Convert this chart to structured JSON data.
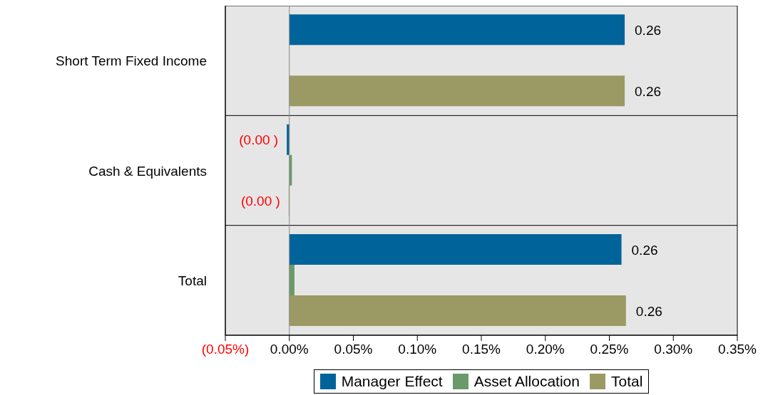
{
  "chart_data": {
    "type": "bar",
    "orientation": "horizontal",
    "categories": [
      "Short Term Fixed Income",
      "Cash & Equivalents",
      "Total"
    ],
    "series": [
      {
        "name": "Manager Effect",
        "color": "#00649b",
        "values": [
          0.262,
          -0.002,
          0.2595
        ],
        "value_labels": [
          "0.26",
          "(0.00 )",
          "0.26"
        ]
      },
      {
        "name": "Asset Allocation",
        "color": "#6a9a6a",
        "values": [
          null,
          0.002,
          0.004
        ],
        "value_labels": [
          null,
          null,
          null
        ]
      },
      {
        "name": "Total",
        "color": "#9c9a64",
        "values": [
          0.262,
          -0.0005,
          0.263
        ],
        "value_labels": [
          "0.26",
          "(0.00 )",
          "0.26"
        ]
      }
    ],
    "xlim": [
      -0.05,
      0.35
    ],
    "xticks": [
      {
        "value": -0.05,
        "label": "(0.05%)"
      },
      {
        "value": 0,
        "label": "0.00%"
      },
      {
        "value": 0.05,
        "label": "0.05%"
      },
      {
        "value": 0.1,
        "label": "0.10%"
      },
      {
        "value": 0.15,
        "label": "0.15%"
      },
      {
        "value": 0.2,
        "label": "0.20%"
      },
      {
        "value": 0.25,
        "label": "0.25%"
      },
      {
        "value": 0.3,
        "label": "0.30%"
      },
      {
        "value": 0.35,
        "label": "0.35%"
      }
    ],
    "legend": "bottom"
  }
}
